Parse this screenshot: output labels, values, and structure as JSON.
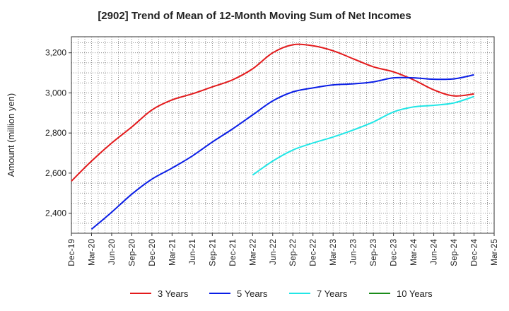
{
  "chart_data": {
    "type": "line",
    "title": "[2902]  Trend of Mean of 12-Month Moving Sum of Net Incomes",
    "ylabel": "Amount (million yen)",
    "xlabel": "",
    "ylim": [
      2300,
      3280
    ],
    "yticks": [
      2400,
      2600,
      2800,
      3000,
      3200
    ],
    "ytick_labels": [
      "2,400",
      "2,600",
      "2,800",
      "3,000",
      "3,200"
    ],
    "xtick_labels": [
      "Dec-19",
      "Mar-20",
      "Jun-20",
      "Sep-20",
      "Dec-20",
      "Mar-21",
      "Jun-21",
      "Sep-21",
      "Dec-21",
      "Mar-22",
      "Jun-22",
      "Sep-22",
      "Dec-22",
      "Mar-23",
      "Jun-23",
      "Sep-23",
      "Dec-23",
      "Mar-24",
      "Jun-24",
      "Sep-24",
      "Dec-24",
      "Mar-25"
    ],
    "grid": true,
    "legend_position": "bottom",
    "series": [
      {
        "name": "3 Years",
        "color": "#e31a1c",
        "values": [
          [
            "Dec-19",
            2560
          ],
          [
            "Mar-20",
            2660
          ],
          [
            "Jun-20",
            2750
          ],
          [
            "Sep-20",
            2830
          ],
          [
            "Dec-20",
            2915
          ],
          [
            "Mar-21",
            2965
          ],
          [
            "Jun-21",
            2995
          ],
          [
            "Sep-21",
            3030
          ],
          [
            "Dec-21",
            3065
          ],
          [
            "Mar-22",
            3120
          ],
          [
            "Jun-22",
            3200
          ],
          [
            "Sep-22",
            3240
          ],
          [
            "Dec-22",
            3235
          ],
          [
            "Mar-23",
            3210
          ],
          [
            "Jun-23",
            3170
          ],
          [
            "Sep-23",
            3130
          ],
          [
            "Dec-23",
            3105
          ],
          [
            "Mar-24",
            3065
          ],
          [
            "Jun-24",
            3015
          ],
          [
            "Sep-24",
            2985
          ],
          [
            "Dec-24",
            2995
          ]
        ]
      },
      {
        "name": "5 Years",
        "color": "#0a1ee6",
        "values": [
          [
            "Mar-20",
            2320
          ],
          [
            "Jun-20",
            2405
          ],
          [
            "Sep-20",
            2495
          ],
          [
            "Dec-20",
            2570
          ],
          [
            "Mar-21",
            2625
          ],
          [
            "Jun-21",
            2685
          ],
          [
            "Sep-21",
            2755
          ],
          [
            "Dec-21",
            2820
          ],
          [
            "Mar-22",
            2890
          ],
          [
            "Jun-22",
            2960
          ],
          [
            "Sep-22",
            3005
          ],
          [
            "Dec-22",
            3025
          ],
          [
            "Mar-23",
            3040
          ],
          [
            "Jun-23",
            3045
          ],
          [
            "Sep-23",
            3055
          ],
          [
            "Dec-23",
            3075
          ],
          [
            "Mar-24",
            3075
          ],
          [
            "Jun-24",
            3068
          ],
          [
            "Sep-24",
            3070
          ],
          [
            "Dec-24",
            3090
          ]
        ]
      },
      {
        "name": "7 Years",
        "color": "#22e6e6",
        "values": [
          [
            "Mar-22",
            2590
          ],
          [
            "Jun-22",
            2660
          ],
          [
            "Sep-22",
            2715
          ],
          [
            "Dec-22",
            2750
          ],
          [
            "Mar-23",
            2780
          ],
          [
            "Jun-23",
            2815
          ],
          [
            "Sep-23",
            2855
          ],
          [
            "Dec-23",
            2905
          ],
          [
            "Mar-24",
            2930
          ],
          [
            "Jun-24",
            2938
          ],
          [
            "Sep-24",
            2950
          ],
          [
            "Dec-24",
            2982
          ]
        ]
      },
      {
        "name": "10 Years",
        "color": "#1a8c1a",
        "values": []
      }
    ]
  }
}
